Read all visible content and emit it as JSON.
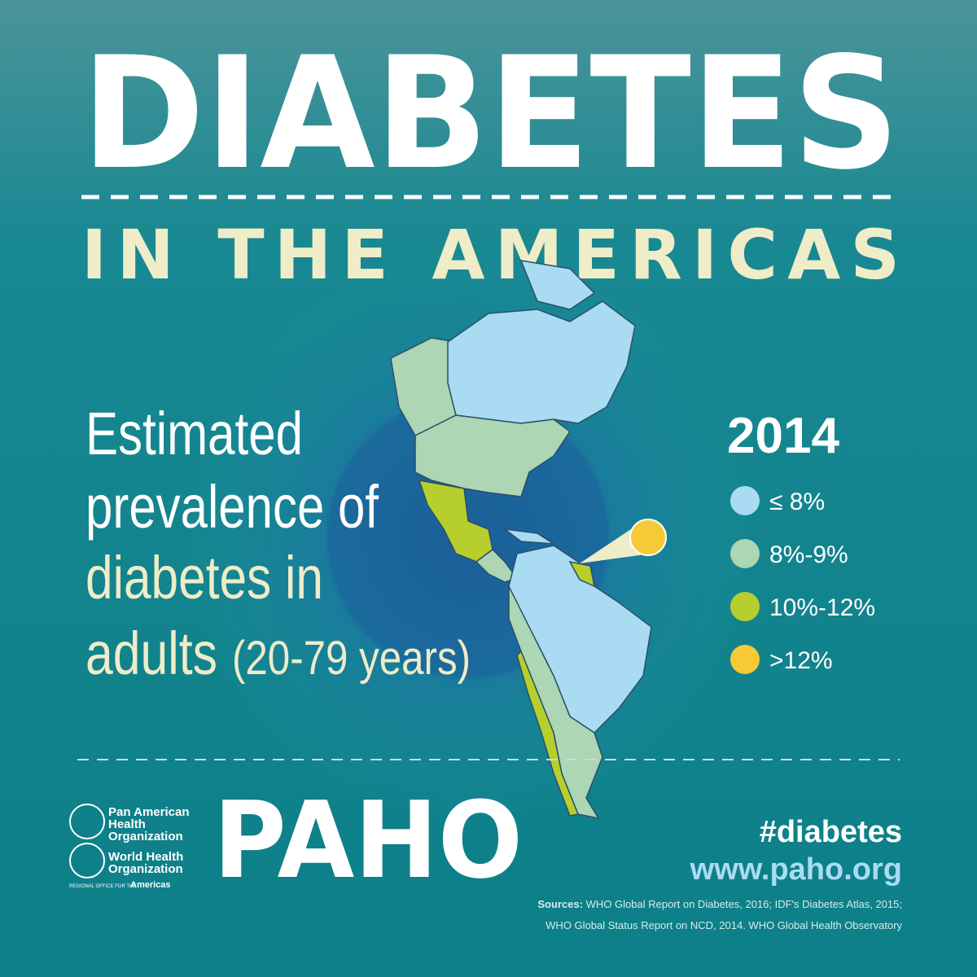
{
  "header": {
    "title": "DIABETES",
    "subtitle": "IN THE AMERICAS"
  },
  "description": {
    "line1": "Estimated",
    "line2": "prevalence of",
    "line3": "diabetes in",
    "line4": "adults",
    "line4_note": "(20-79 years)"
  },
  "legend": {
    "year": "2014",
    "items": [
      {
        "label": "≤ 8%",
        "color": "#a9dcf3"
      },
      {
        "label": "8%-9%",
        "color": "#acd6b4"
      },
      {
        "label": "10%-12%",
        "color": "#b6cf2c"
      },
      {
        "label": ">12%",
        "color": "#f7c935"
      }
    ]
  },
  "logos": {
    "paho_name": [
      "Pan American",
      "Health",
      "Organization"
    ],
    "who_name": [
      "World Health",
      "Organization"
    ],
    "regional_office": "REGIONAL OFFICE FOR THE",
    "regional_region": "Americas",
    "paho": "PAHO"
  },
  "footer": {
    "hashtag": "#diabetes",
    "url": "www.paho.org",
    "sources_label": "Sources:",
    "sources_line1": "WHO Global Report on Diabetes, 2016; IDF's Diabetes Atlas, 2015;",
    "sources_line2": "WHO Global Status Report on NCD, 2014. WHO Global Health Observatory"
  }
}
